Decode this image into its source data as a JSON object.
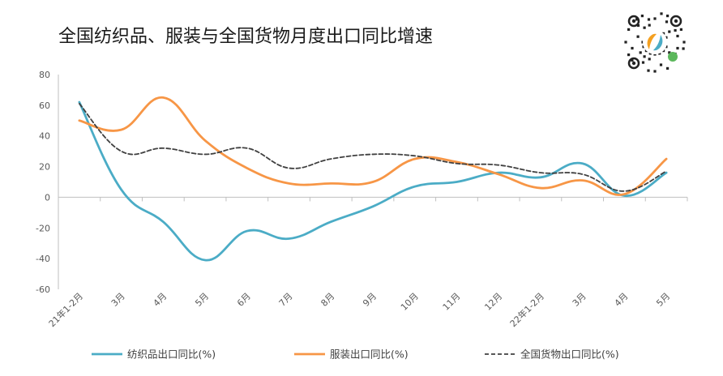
{
  "chart_data": {
    "type": "line",
    "title": "全国纺织品、服装与全国货物月度出口同比增速",
    "xlabel": "",
    "ylabel": "",
    "ylim": [
      -60,
      80
    ],
    "yticks": [
      80,
      60,
      40,
      20,
      0,
      -20,
      -40,
      -60
    ],
    "categories": [
      "21年1-2月",
      "3月",
      "4月",
      "5月",
      "6月",
      "7月",
      "8月",
      "9月",
      "10月",
      "11月",
      "12月",
      "22年1-2月",
      "3月",
      "4月",
      "5月"
    ],
    "series": [
      {
        "name": "纺织品出口同比(%)",
        "color": "#4bacc6",
        "style": "solid",
        "values": [
          62,
          5,
          -16,
          -41,
          -22,
          -27,
          -16,
          -6,
          7,
          10,
          16,
          13,
          22,
          1,
          16
        ]
      },
      {
        "name": "服装出口同比(%)",
        "color": "#f79646",
        "style": "solid",
        "values": [
          50,
          44,
          65,
          37,
          19,
          9,
          9,
          10,
          25,
          23,
          15,
          6,
          11,
          2,
          25
        ]
      },
      {
        "name": "全国货物出口同比(%)",
        "color": "#404040",
        "style": "dashed",
        "values": [
          61,
          30,
          32,
          28,
          32,
          19,
          25,
          28,
          27,
          22,
          21,
          16,
          15,
          4,
          17
        ]
      }
    ],
    "legend_position": "bottom",
    "grid": false
  },
  "qr_code": {
    "label": "mini-program code"
  }
}
